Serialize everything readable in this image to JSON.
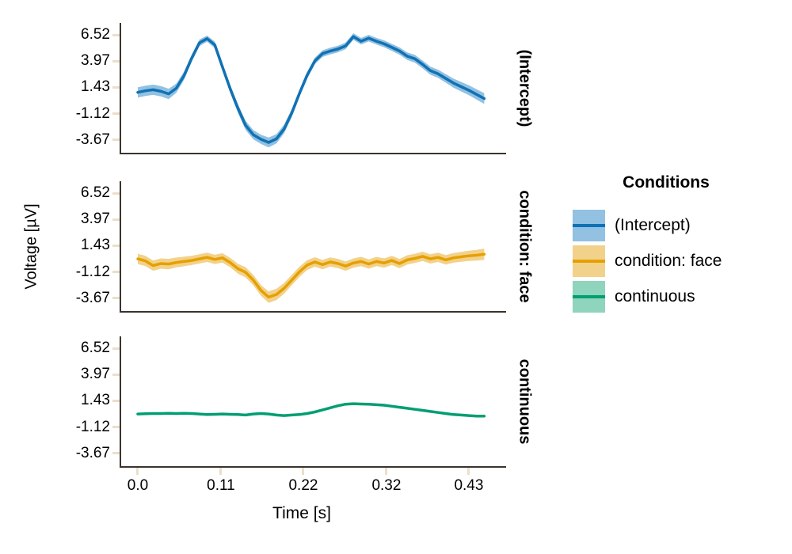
{
  "style": {
    "spine_color": "#3b332c",
    "tick_color": "#eadfcd",
    "background": "#ffffff",
    "text_color": "#000000"
  },
  "chart_data": {
    "type": "line",
    "xlabel": "Time [s]",
    "ylabel": "Voltage [µV]",
    "xlim": [
      -0.0216,
      0.4784
    ],
    "ylim": [
      -4.9,
      7.67
    ],
    "grid": false,
    "xticks": [
      0,
      0.108,
      0.215,
      0.323,
      0.43
    ],
    "xtick_labels": [
      "0.0",
      "0.11",
      "0.22",
      "0.32",
      "0.43"
    ],
    "yticks": [
      6.52,
      3.97,
      1.43,
      -1.12,
      -3.67
    ],
    "ytick_labels": [
      "6.52",
      "3.97",
      "1.43",
      "-1.12",
      "-3.67"
    ],
    "legend": {
      "title": "Conditions",
      "position": "right",
      "entries": [
        "(Intercept)",
        "condition: face",
        "continuous"
      ]
    },
    "panel_labels": [
      "(Intercept)",
      "condition: face",
      "continuous"
    ],
    "x": [
      0,
      0.01,
      0.02,
      0.03,
      0.04,
      0.05,
      0.06,
      0.07,
      0.08,
      0.09,
      0.1,
      0.11,
      0.12,
      0.13,
      0.14,
      0.15,
      0.16,
      0.17,
      0.18,
      0.19,
      0.2,
      0.21,
      0.22,
      0.23,
      0.24,
      0.25,
      0.26,
      0.27,
      0.28,
      0.29,
      0.3,
      0.31,
      0.32,
      0.33,
      0.34,
      0.35,
      0.36,
      0.37,
      0.38,
      0.39,
      0.4,
      0.41,
      0.42,
      0.43,
      0.44,
      0.45
    ],
    "series": [
      {
        "name": "(Intercept)",
        "color": "#1072b4",
        "band_color": "#92c1e2",
        "values": [
          0.95,
          1.1,
          1.2,
          1.05,
          0.8,
          1.35,
          2.55,
          4.25,
          5.75,
          6.15,
          5.55,
          3.4,
          1.3,
          -0.6,
          -2.25,
          -3.15,
          -3.6,
          -3.9,
          -3.55,
          -2.6,
          -1.05,
          0.85,
          2.6,
          4.0,
          4.7,
          4.95,
          5.15,
          5.45,
          6.35,
          5.9,
          6.2,
          5.9,
          5.65,
          5.3,
          4.95,
          4.45,
          4.2,
          3.65,
          3.05,
          2.75,
          2.3,
          1.85,
          1.5,
          1.15,
          0.75,
          0.35
        ],
        "band": [
          0.5,
          0.5,
          0.5,
          0.5,
          0.5,
          0.45,
          0.4,
          0.35,
          0.32,
          0.3,
          0.32,
          0.35,
          0.4,
          0.42,
          0.45,
          0.45,
          0.45,
          0.48,
          0.45,
          0.42,
          0.4,
          0.35,
          0.33,
          0.32,
          0.32,
          0.32,
          0.32,
          0.32,
          0.32,
          0.32,
          0.32,
          0.32,
          0.33,
          0.34,
          0.35,
          0.36,
          0.37,
          0.38,
          0.39,
          0.4,
          0.42,
          0.44,
          0.46,
          0.48,
          0.5,
          0.52
        ]
      },
      {
        "name": "condition: face",
        "color": "#e69f00",
        "band_color": "#f2d28a",
        "values": [
          0.15,
          -0.05,
          -0.5,
          -0.3,
          -0.35,
          -0.2,
          -0.1,
          0.0,
          0.15,
          0.3,
          0.1,
          0.25,
          -0.2,
          -0.8,
          -1.15,
          -1.9,
          -2.9,
          -3.55,
          -3.3,
          -2.7,
          -1.9,
          -1.1,
          -0.45,
          -0.15,
          -0.4,
          -0.15,
          -0.3,
          -0.55,
          -0.25,
          -0.1,
          -0.35,
          -0.1,
          -0.25,
          0.0,
          -0.3,
          0.05,
          0.2,
          0.4,
          0.15,
          0.3,
          0.05,
          0.25,
          0.35,
          0.45,
          0.5,
          0.6
        ],
        "band": [
          0.5,
          0.5,
          0.5,
          0.5,
          0.5,
          0.48,
          0.46,
          0.45,
          0.45,
          0.45,
          0.45,
          0.45,
          0.46,
          0.48,
          0.5,
          0.5,
          0.52,
          0.55,
          0.55,
          0.52,
          0.5,
          0.5,
          0.48,
          0.46,
          0.45,
          0.45,
          0.45,
          0.45,
          0.45,
          0.45,
          0.45,
          0.45,
          0.45,
          0.45,
          0.45,
          0.45,
          0.45,
          0.45,
          0.45,
          0.45,
          0.46,
          0.47,
          0.48,
          0.5,
          0.52,
          0.55
        ]
      },
      {
        "name": "continuous",
        "color": "#009e73",
        "band_color": "#8fd4bc",
        "values": [
          0.15,
          0.18,
          0.2,
          0.2,
          0.22,
          0.2,
          0.22,
          0.2,
          0.15,
          0.1,
          0.12,
          0.15,
          0.12,
          0.1,
          0.05,
          0.15,
          0.2,
          0.15,
          0.05,
          0.0,
          0.05,
          0.1,
          0.2,
          0.35,
          0.55,
          0.75,
          0.95,
          1.1,
          1.15,
          1.12,
          1.1,
          1.05,
          1.0,
          0.9,
          0.8,
          0.7,
          0.6,
          0.5,
          0.4,
          0.3,
          0.2,
          0.1,
          0.05,
          0.0,
          -0.05,
          -0.05
        ],
        "band": [
          0.08,
          0.08,
          0.08,
          0.08,
          0.08,
          0.08,
          0.08,
          0.08,
          0.08,
          0.08,
          0.08,
          0.08,
          0.08,
          0.08,
          0.08,
          0.08,
          0.08,
          0.08,
          0.08,
          0.08,
          0.08,
          0.08,
          0.08,
          0.08,
          0.08,
          0.08,
          0.08,
          0.08,
          0.08,
          0.08,
          0.08,
          0.08,
          0.08,
          0.08,
          0.08,
          0.08,
          0.08,
          0.08,
          0.08,
          0.08,
          0.08,
          0.08,
          0.08,
          0.08,
          0.08,
          0.08
        ]
      }
    ]
  }
}
